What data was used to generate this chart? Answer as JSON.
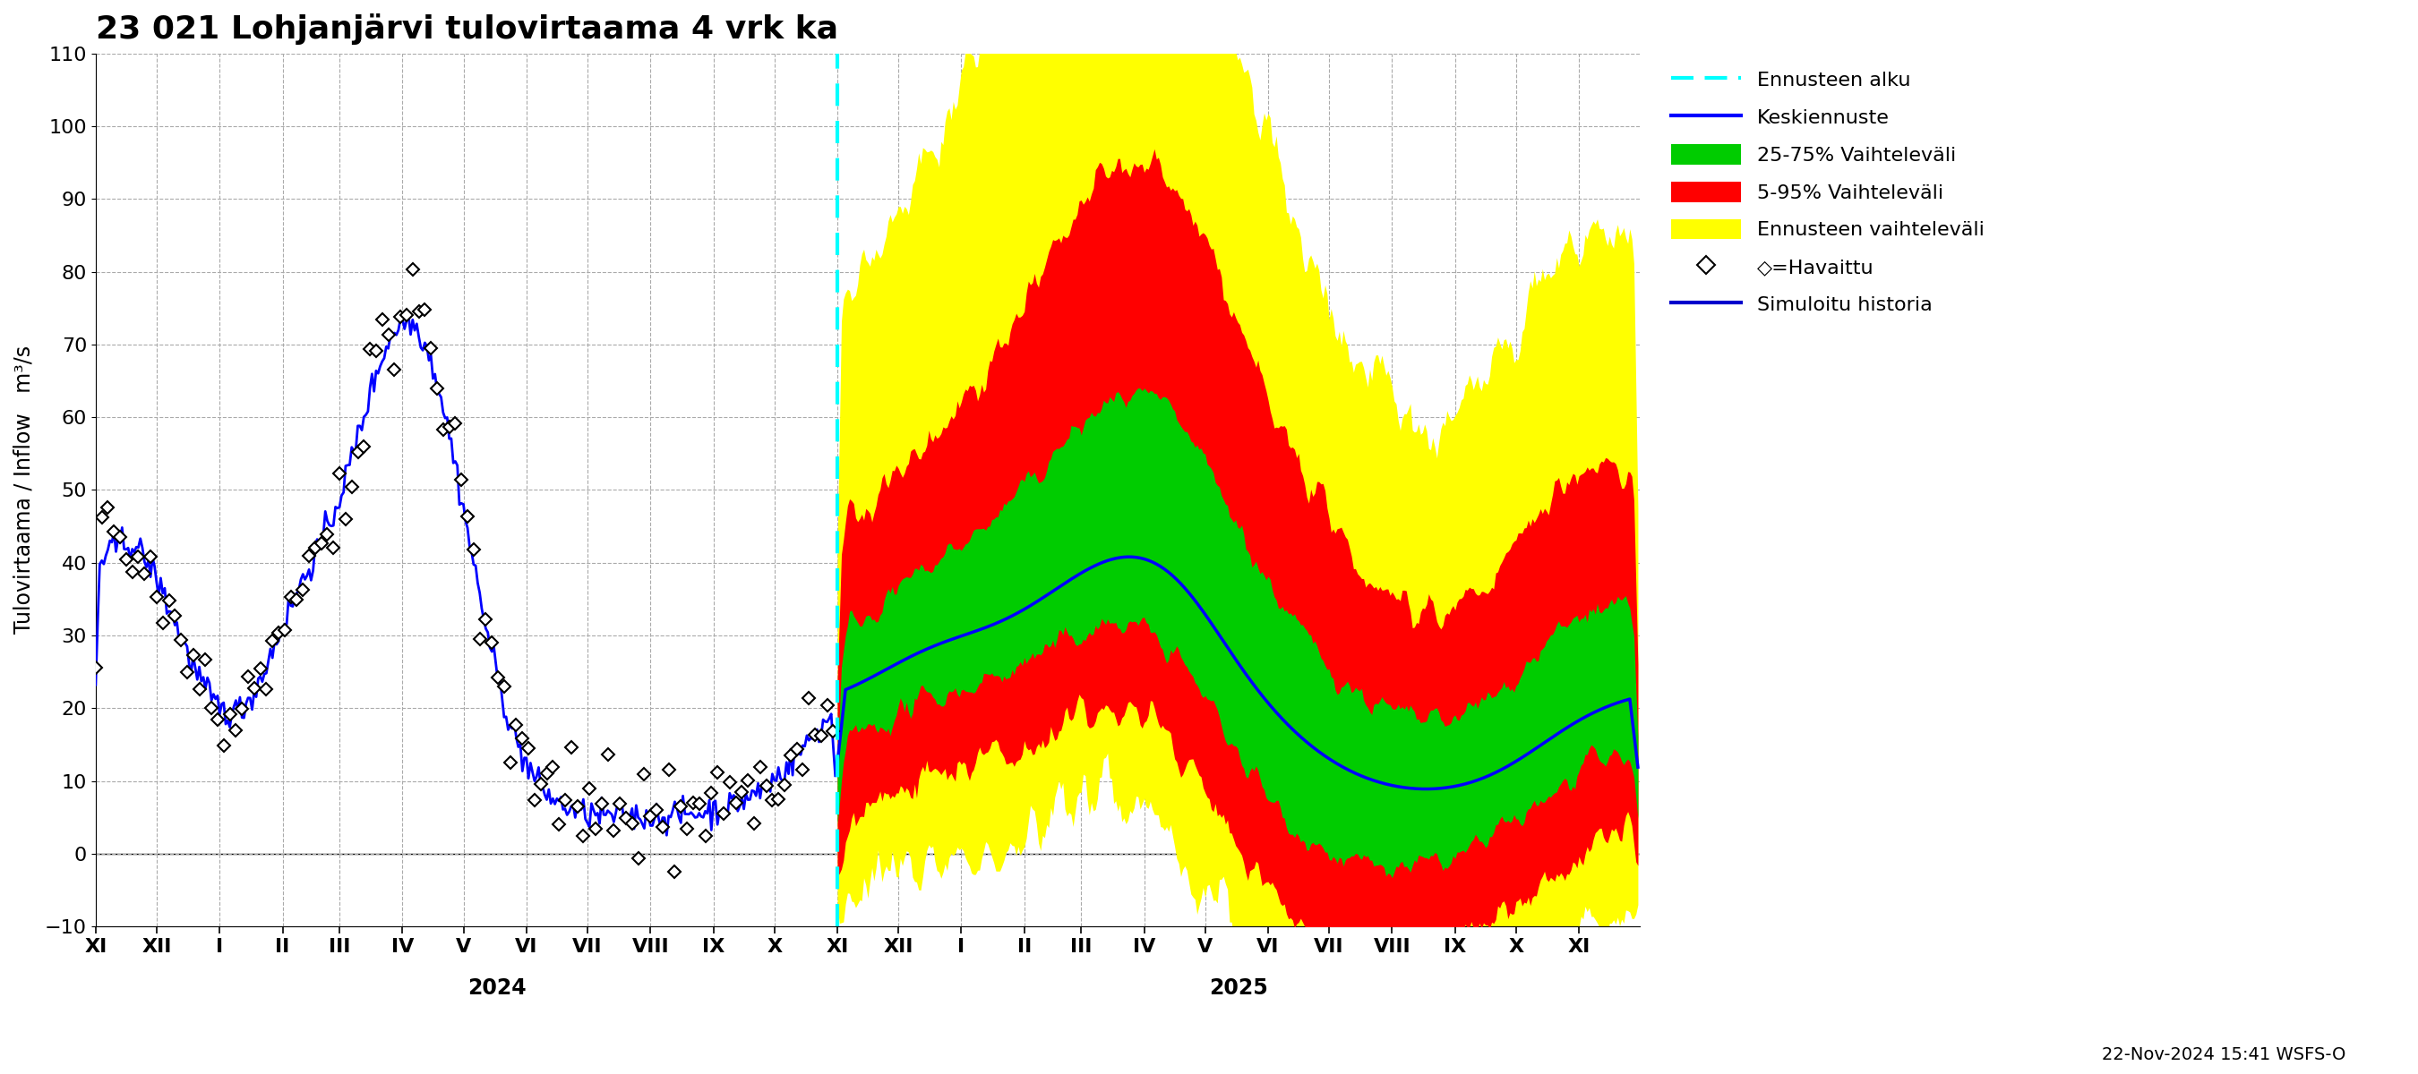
{
  "title": "23 021 Lohjanjärvi tulovirtaama 4 vrk ka",
  "ylabel": "Tulovirtaama / Inflow   m³/s",
  "ylim": [
    -10,
    110
  ],
  "yticks": [
    -10,
    0,
    10,
    20,
    30,
    40,
    50,
    60,
    70,
    80,
    90,
    100,
    110
  ],
  "footnote": "22-Nov-2024 15:41 WSFS-O",
  "background_color": "#ffffff",
  "grid_color": "#aaaaaa",
  "colors": {
    "cyan_dashed": "#00ffff",
    "keskiennuste": "#0000ff",
    "vaihteluvali_25_75": "#00cc00",
    "vaihteluvali_5_95": "#ff0000",
    "ennusteen_vaihteluvali": "#ffff00",
    "simuloitu": "#0000cc",
    "observed": "#000000"
  },
  "legend_items": [
    {
      "label": "Ennusteen alku",
      "color": "#00ffff",
      "style": "dashed"
    },
    {
      "label": "Keskiennuste",
      "color": "#0000ff",
      "style": "line"
    },
    {
      "label": "25-75% Vaihteleväli",
      "color": "#00cc00",
      "style": "patch"
    },
    {
      "label": "5-95% Vaihteleväli",
      "color": "#ff0000",
      "style": "patch"
    },
    {
      "label": "Ennusteen vaihteleväli",
      "color": "#ffff00",
      "style": "patch"
    },
    {
      "label": "◇=Havaittu",
      "color": "#000000",
      "style": "marker"
    },
    {
      "label": "Simuloitu historia",
      "color": "#0000cc",
      "style": "line"
    }
  ],
  "month_days": [
    30,
    31,
    31,
    28,
    31,
    30,
    31,
    30,
    31,
    31,
    30,
    31,
    30,
    31,
    31,
    28,
    31,
    30,
    31,
    30,
    31,
    31,
    30,
    31,
    30
  ],
  "month_labels": [
    "XI",
    "XII",
    "I",
    "II",
    "III",
    "IV",
    "V",
    "VI",
    "VII",
    "VIII",
    "IX",
    "X",
    "XI",
    "XII",
    "I",
    "II",
    "III",
    "IV",
    "V",
    "VI",
    "VII",
    "VIII",
    "IX",
    "X",
    "XI"
  ]
}
